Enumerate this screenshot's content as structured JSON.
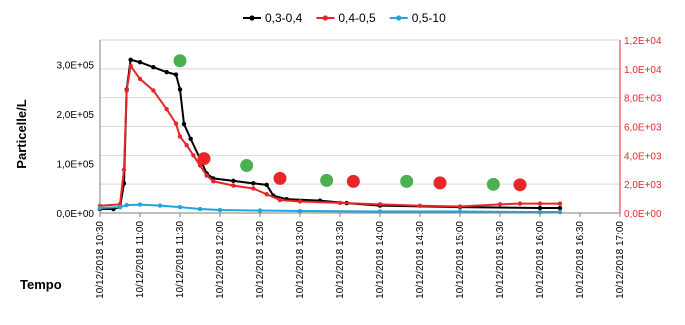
{
  "chart_data": {
    "type": "line",
    "title": "",
    "xlabel": "Tempo",
    "ylabel": "Particelle/L",
    "legend_position": "top",
    "grid": true,
    "x_ticks": [
      "10/12/2018 10:30",
      "10/12/2018 11:00",
      "10/12/2018 11:30",
      "10/12/2018 12:00",
      "10/12/2018 12:30",
      "10/12/2018 13:00",
      "10/12/2018 13:30",
      "10/12/2018 14:00",
      "10/12/2018 14:30",
      "10/12/2018 15:00",
      "10/12/2018 15:30",
      "10/12/2018 16:00",
      "10/12/2018 16:30",
      "10/12/2018 17:00"
    ],
    "x_range": [
      "10/12/2018 10:30",
      "10/12/2018 17:00"
    ],
    "y_left": {
      "range": [
        0,
        350000
      ],
      "ticks": [
        0,
        100000,
        200000,
        300000
      ],
      "tick_labels": [
        "0,0E+00",
        "1,0E+05",
        "2,0E+05",
        "3,0E+05"
      ]
    },
    "y_right": {
      "range": [
        0,
        12000
      ],
      "color": "#e8262a",
      "ticks": [
        0,
        2000,
        4000,
        6000,
        8000,
        10000,
        12000
      ],
      "tick_labels": [
        "0,0E+00",
        "2,0E+03",
        "4,0E+03",
        "6,0E+03",
        "8,0E+03",
        "1,0E+04",
        "1,2E+04"
      ]
    },
    "series": [
      {
        "name": "0,3-0,4",
        "axis": "left",
        "color": "#000000",
        "points": [
          [
            "10/12/2018 10:30",
            8000
          ],
          [
            "10/12/2018 10:40",
            8000
          ],
          [
            "10/12/2018 10:45",
            12000
          ],
          [
            "10/12/2018 10:48",
            60000
          ],
          [
            "10/12/2018 10:50",
            250000
          ],
          [
            "10/12/2018 10:53",
            310000
          ],
          [
            "10/12/2018 11:00",
            305000
          ],
          [
            "10/12/2018 11:10",
            295000
          ],
          [
            "10/12/2018 11:20",
            285000
          ],
          [
            "10/12/2018 11:27",
            280000
          ],
          [
            "10/12/2018 11:30",
            250000
          ],
          [
            "10/12/2018 11:33",
            180000
          ],
          [
            "10/12/2018 11:38",
            150000
          ],
          [
            "10/12/2018 11:45",
            110000
          ],
          [
            "10/12/2018 11:50",
            80000
          ],
          [
            "10/12/2018 11:55",
            70000
          ],
          [
            "10/12/2018 12:10",
            65000
          ],
          [
            "10/12/2018 12:25",
            60000
          ],
          [
            "10/12/2018 12:35",
            57000
          ],
          [
            "10/12/2018 12:40",
            35000
          ],
          [
            "10/12/2018 12:50",
            28000
          ],
          [
            "10/12/2018 13:15",
            25000
          ],
          [
            "10/12/2018 13:35",
            20000
          ],
          [
            "10/12/2018 14:00",
            15000
          ],
          [
            "10/12/2018 15:00",
            12000
          ],
          [
            "10/12/2018 16:00",
            10000
          ],
          [
            "10/12/2018 16:15",
            10000
          ]
        ]
      },
      {
        "name": "0,4-0,5",
        "axis": "right",
        "color": "#e8262a",
        "points": [
          [
            "10/12/2018 10:30",
            500
          ],
          [
            "10/12/2018 10:45",
            600
          ],
          [
            "10/12/2018 10:48",
            3000
          ],
          [
            "10/12/2018 10:50",
            8500
          ],
          [
            "10/12/2018 10:53",
            10200
          ],
          [
            "10/12/2018 11:00",
            9300
          ],
          [
            "10/12/2018 11:10",
            8500
          ],
          [
            "10/12/2018 11:20",
            7200
          ],
          [
            "10/12/2018 11:27",
            6200
          ],
          [
            "10/12/2018 11:30",
            5300
          ],
          [
            "10/12/2018 11:35",
            4700
          ],
          [
            "10/12/2018 11:40",
            4000
          ],
          [
            "10/12/2018 11:45",
            3300
          ],
          [
            "10/12/2018 11:50",
            2600
          ],
          [
            "10/12/2018 11:55",
            2200
          ],
          [
            "10/12/2018 12:10",
            1900
          ],
          [
            "10/12/2018 12:25",
            1700
          ],
          [
            "10/12/2018 12:35",
            1300
          ],
          [
            "10/12/2018 12:45",
            900
          ],
          [
            "10/12/2018 13:00",
            800
          ],
          [
            "10/12/2018 13:30",
            700
          ],
          [
            "10/12/2018 14:00",
            600
          ],
          [
            "10/12/2018 14:30",
            500
          ],
          [
            "10/12/2018 15:00",
            450
          ],
          [
            "10/12/2018 15:30",
            600
          ],
          [
            "10/12/2018 15:45",
            650
          ],
          [
            "10/12/2018 16:00",
            650
          ],
          [
            "10/12/2018 16:15",
            650
          ]
        ]
      },
      {
        "name": "0,5-10",
        "axis": "left",
        "color": "#1fa6e0",
        "points": [
          [
            "10/12/2018 10:30",
            10000
          ],
          [
            "10/12/2018 10:45",
            12000
          ],
          [
            "10/12/2018 10:50",
            16000
          ],
          [
            "10/12/2018 11:00",
            17000
          ],
          [
            "10/12/2018 11:15",
            15000
          ],
          [
            "10/12/2018 11:30",
            12000
          ],
          [
            "10/12/2018 11:45",
            8000
          ],
          [
            "10/12/2018 12:00",
            6000
          ],
          [
            "10/12/2018 12:30",
            5000
          ],
          [
            "10/12/2018 13:00",
            4000
          ],
          [
            "10/12/2018 14:00",
            3000
          ],
          [
            "10/12/2018 15:00",
            3000
          ],
          [
            "10/12/2018 16:00",
            2000
          ],
          [
            "10/12/2018 16:15",
            2000
          ]
        ]
      }
    ],
    "markers": [
      {
        "x": "10/12/2018 11:30",
        "y": 308000,
        "color": "#4caf50"
      },
      {
        "x": "10/12/2018 11:48",
        "y": 110000,
        "color": "#e8262a"
      },
      {
        "x": "10/12/2018 12:20",
        "y": 96000,
        "color": "#4caf50"
      },
      {
        "x": "10/12/2018 12:45",
        "y": 70000,
        "color": "#e8262a"
      },
      {
        "x": "10/12/2018 13:20",
        "y": 66000,
        "color": "#4caf50"
      },
      {
        "x": "10/12/2018 13:40",
        "y": 64000,
        "color": "#e8262a"
      },
      {
        "x": "10/12/2018 14:20",
        "y": 64000,
        "color": "#4caf50"
      },
      {
        "x": "10/12/2018 14:45",
        "y": 61000,
        "color": "#e8262a"
      },
      {
        "x": "10/12/2018 15:25",
        "y": 58000,
        "color": "#4caf50"
      },
      {
        "x": "10/12/2018 15:45",
        "y": 57000,
        "color": "#e8262a"
      }
    ]
  }
}
